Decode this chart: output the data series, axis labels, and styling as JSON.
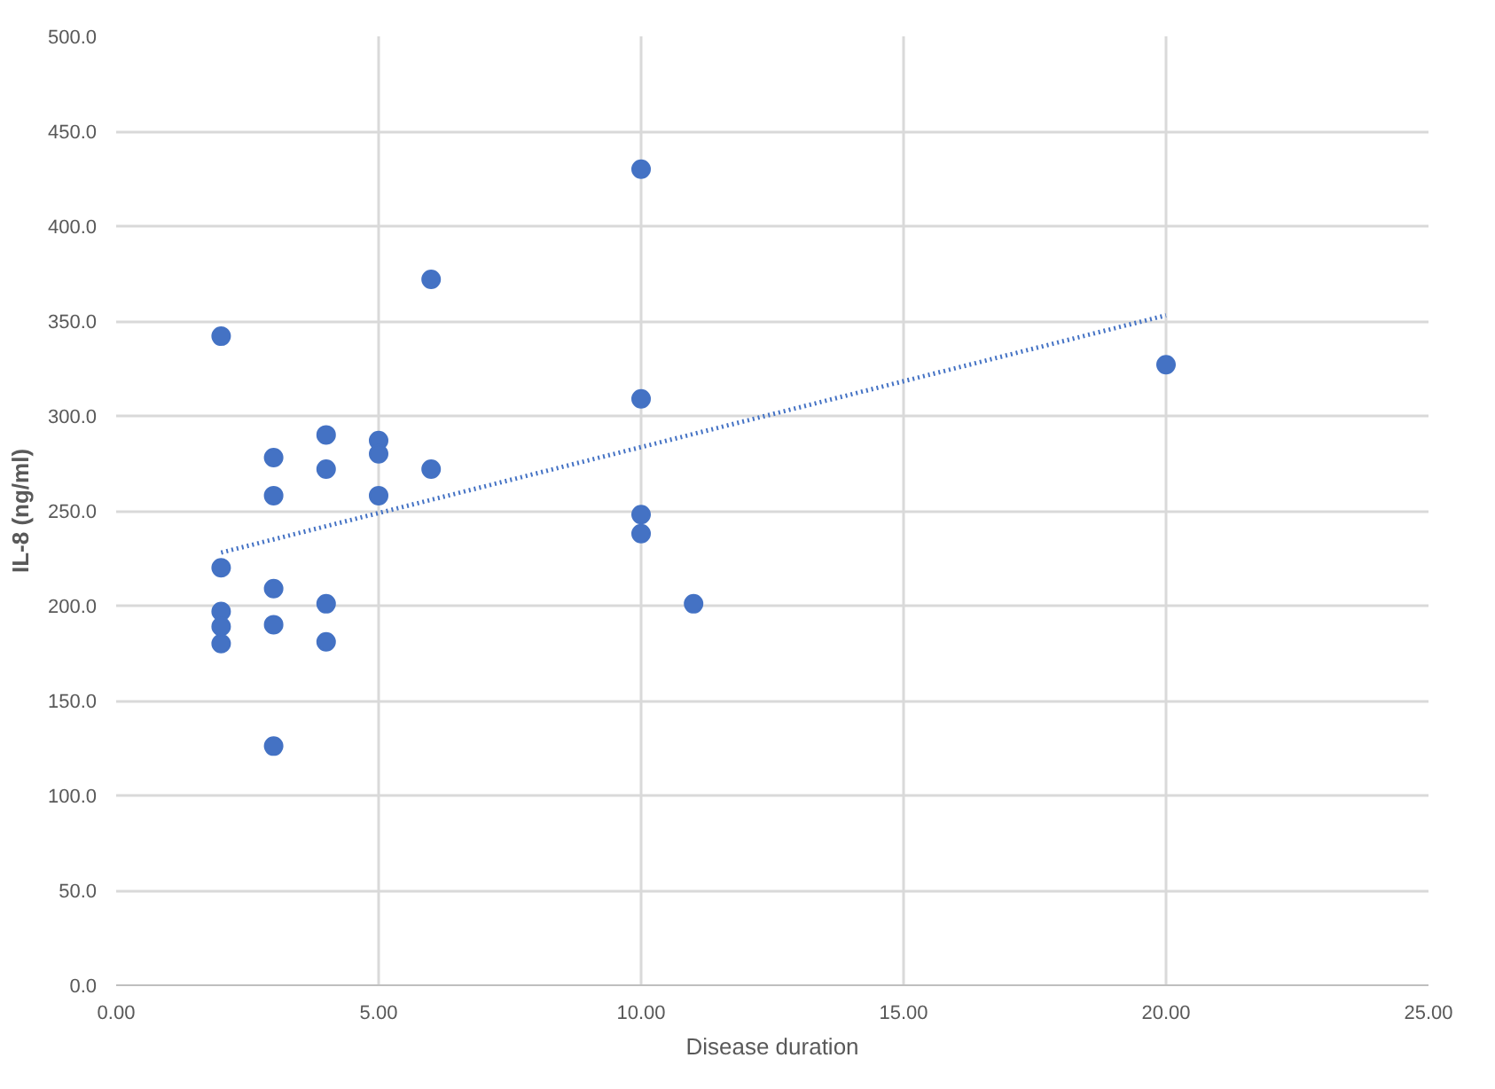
{
  "chart_data": {
    "type": "scatter",
    "xlabel": "Disease duration",
    "ylabel": "IL-8 (ng/ml)",
    "xlim": [
      0,
      25
    ],
    "ylim": [
      0,
      500
    ],
    "xticks": [
      {
        "value": 0,
        "label": "0.00"
      },
      {
        "value": 5,
        "label": "5.00"
      },
      {
        "value": 10,
        "label": "10.00"
      },
      {
        "value": 15,
        "label": "15.00"
      },
      {
        "value": 20,
        "label": "20.00"
      },
      {
        "value": 25,
        "label": "25.00"
      }
    ],
    "yticks": [
      {
        "value": 0,
        "label": "0.0"
      },
      {
        "value": 50,
        "label": "50.0"
      },
      {
        "value": 100,
        "label": "100.0"
      },
      {
        "value": 150,
        "label": "150.0"
      },
      {
        "value": 200,
        "label": "200.0"
      },
      {
        "value": 250,
        "label": "250.0"
      },
      {
        "value": 300,
        "label": "300.0"
      },
      {
        "value": 350,
        "label": "350.0"
      },
      {
        "value": 400,
        "label": "400.0"
      },
      {
        "value": 450,
        "label": "450.0"
      },
      {
        "value": 500,
        "label": "500.0"
      }
    ],
    "grid": true,
    "series": [
      {
        "marker": "circle",
        "color": "#4472c4",
        "x": [
          2,
          2,
          2,
          2,
          2,
          3,
          3,
          3,
          3,
          3,
          4,
          4,
          4,
          4,
          5,
          5,
          5,
          6,
          6,
          10,
          10,
          10,
          10,
          11,
          20
        ],
        "values": [
          342,
          220,
          197,
          189,
          180,
          278,
          258,
          209,
          190,
          126,
          290,
          272,
          201,
          181,
          287,
          280,
          258,
          372,
          272,
          430,
          309,
          248,
          238,
          201,
          327
        ]
      },
      {
        "type": "line",
        "color": "#4472c4",
        "line_style": "dotted",
        "x": [
          2,
          20
        ],
        "values": [
          228,
          353
        ]
      }
    ]
  }
}
